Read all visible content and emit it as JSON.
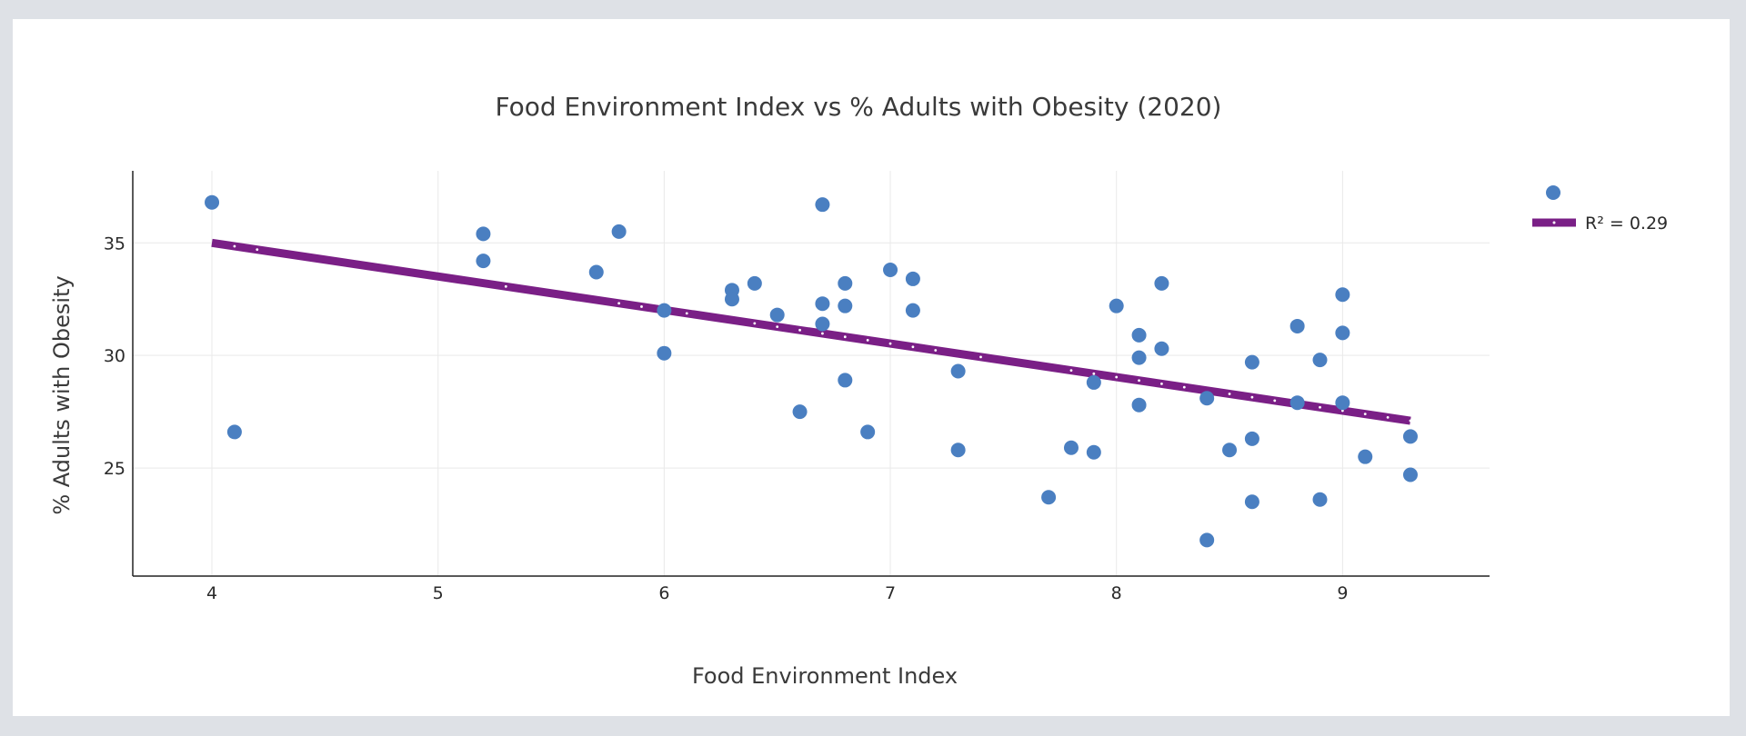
{
  "colors": {
    "points": "#4a7fc1",
    "trendline": "#7a1f86",
    "grid": "#e9e9e9",
    "axis": "#222222",
    "background": "#ffffff",
    "page": "#dee1e6"
  },
  "chart_data": {
    "type": "scatter",
    "title": "Food Environment Index vs % Adults with Obesity (2020)",
    "xlabel": "Food Environment Index",
    "ylabel": "% Adults with Obesity",
    "xlim": [
      3.65,
      9.65
    ],
    "ylim": [
      20.2,
      38.2
    ],
    "xticks": [
      4,
      5,
      6,
      7,
      8,
      9
    ],
    "yticks": [
      25,
      30,
      35
    ],
    "grid": true,
    "legend_position": "top-right",
    "series": [
      {
        "type": "scatter",
        "points": [
          [
            4.0,
            36.8
          ],
          [
            4.1,
            26.6
          ],
          [
            5.2,
            35.4
          ],
          [
            5.2,
            34.2
          ],
          [
            5.7,
            33.7
          ],
          [
            5.8,
            35.5
          ],
          [
            6.0,
            32.0
          ],
          [
            6.0,
            30.1
          ],
          [
            6.3,
            32.9
          ],
          [
            6.3,
            32.5
          ],
          [
            6.4,
            33.2
          ],
          [
            6.5,
            31.8
          ],
          [
            6.6,
            27.5
          ],
          [
            6.7,
            36.7
          ],
          [
            6.7,
            32.3
          ],
          [
            6.7,
            31.4
          ],
          [
            6.8,
            33.2
          ],
          [
            6.8,
            32.2
          ],
          [
            6.8,
            28.9
          ],
          [
            6.9,
            26.6
          ],
          [
            7.0,
            33.8
          ],
          [
            7.1,
            33.4
          ],
          [
            7.1,
            32.0
          ],
          [
            7.3,
            29.3
          ],
          [
            7.3,
            25.8
          ],
          [
            7.7,
            23.7
          ],
          [
            7.8,
            25.9
          ],
          [
            7.9,
            28.8
          ],
          [
            7.9,
            25.7
          ],
          [
            8.0,
            32.2
          ],
          [
            8.1,
            30.9
          ],
          [
            8.1,
            29.9
          ],
          [
            8.1,
            27.8
          ],
          [
            8.2,
            33.2
          ],
          [
            8.2,
            30.3
          ],
          [
            8.4,
            28.1
          ],
          [
            8.4,
            21.8
          ],
          [
            8.5,
            25.8
          ],
          [
            8.6,
            29.7
          ],
          [
            8.6,
            26.3
          ],
          [
            8.6,
            23.5
          ],
          [
            8.8,
            31.3
          ],
          [
            8.8,
            27.9
          ],
          [
            8.9,
            29.8
          ],
          [
            8.9,
            23.6
          ],
          [
            9.0,
            32.7
          ],
          [
            9.0,
            31.0
          ],
          [
            9.0,
            27.9
          ],
          [
            9.1,
            25.5
          ],
          [
            9.3,
            26.4
          ],
          [
            9.3,
            24.7
          ]
        ]
      },
      {
        "type": "line",
        "name": "R² = 0.29",
        "x": [
          4.0,
          9.3
        ],
        "y": [
          35.0,
          27.1
        ]
      }
    ]
  }
}
